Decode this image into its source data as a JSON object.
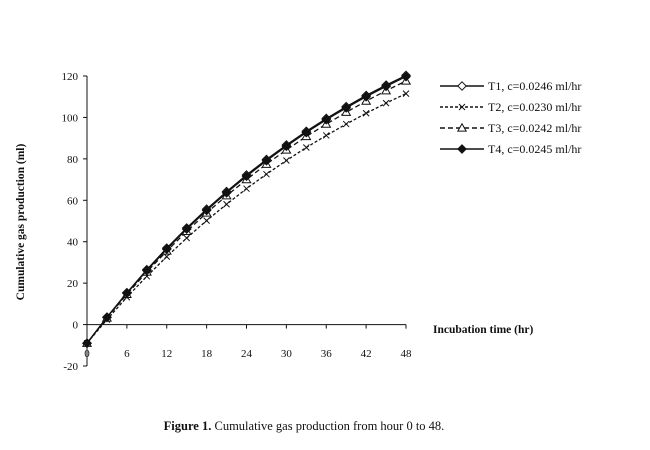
{
  "chart_data": {
    "type": "line",
    "xlabel": "Incubation time (hr)",
    "ylabel": "Cumulative gas production (ml)",
    "xlim": [
      0,
      48
    ],
    "ylim": [
      -20,
      120
    ],
    "xticks": [
      6,
      12,
      18,
      24,
      30,
      36,
      42,
      48
    ],
    "xtick_labels": [
      "6",
      "12",
      "18",
      "24",
      "30",
      "36",
      "42",
      "48"
    ],
    "yticks": [
      -20,
      0,
      20,
      40,
      60,
      80,
      100,
      120
    ],
    "ytick_labels": [
      "-20",
      "0",
      "20",
      "40",
      "60",
      "80",
      "100",
      "120"
    ],
    "x_origin_label": "0",
    "grid": false,
    "legend": "top-right",
    "series": [
      {
        "name": "T1, c=0.0246 ml/hr",
        "marker": "diamond-open",
        "dash": "solid",
        "x": [
          0,
          3,
          6,
          9,
          12,
          15,
          18,
          21,
          24,
          27,
          30,
          33,
          36,
          39,
          42,
          45,
          48
        ],
        "y": [
          -9,
          3.6,
          15.4,
          26.5,
          36.9,
          46.6,
          55.7,
          64.2,
          72.2,
          79.7,
          86.7,
          93.3,
          99.5,
          105.2,
          110.6,
          115.6,
          120.3
        ]
      },
      {
        "name": "T2, c=0.0230 ml/hr",
        "marker": "x",
        "dash": "short-dash",
        "x": [
          0,
          3,
          6,
          9,
          12,
          15,
          18,
          21,
          24,
          27,
          30,
          33,
          36,
          39,
          42,
          45,
          48
        ],
        "y": [
          -9,
          2.4,
          13.2,
          23.3,
          32.8,
          41.8,
          50.2,
          58.1,
          65.6,
          72.6,
          79.2,
          85.5,
          91.3,
          96.8,
          102.0,
          106.9,
          111.5
        ]
      },
      {
        "name": "T3, c=0.0242 ml/hr",
        "marker": "triangle-open",
        "dash": "dash",
        "x": [
          0,
          3,
          6,
          9,
          12,
          15,
          18,
          21,
          24,
          27,
          30,
          33,
          36,
          39,
          42,
          45,
          48
        ],
        "y": [
          -9,
          3.2,
          14.6,
          25.4,
          35.5,
          45.0,
          53.9,
          62.2,
          70.0,
          77.4,
          84.3,
          90.8,
          96.8,
          102.5,
          107.9,
          112.9,
          117.6
        ]
      },
      {
        "name": "T4, c=0.0245 ml/hr",
        "marker": "diamond-filled",
        "dash": "solid",
        "x": [
          0,
          3,
          6,
          9,
          12,
          15,
          18,
          21,
          24,
          27,
          30,
          33,
          36,
          39,
          42,
          45,
          48
        ],
        "y": [
          -9,
          3.4,
          15.1,
          26.1,
          36.4,
          46.1,
          55.1,
          63.6,
          71.6,
          79.1,
          86.1,
          92.7,
          98.9,
          104.6,
          110.0,
          115.0,
          119.7
        ]
      }
    ]
  },
  "caption": {
    "label": "Figure 1.",
    "text": " Cumulative gas production from hour 0 to 48."
  },
  "colors": {
    "line": "#111111",
    "background": "#ffffff"
  }
}
